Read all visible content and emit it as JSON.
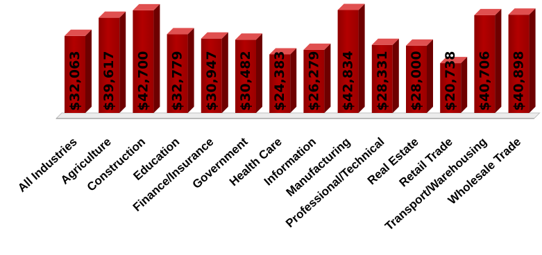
{
  "chart_data": {
    "type": "bar",
    "title": "",
    "xlabel": "",
    "ylabel": "",
    "categories": [
      "All Industries",
      "Agriculture",
      "Construction",
      "Education",
      "Finance/Insurance",
      "Government",
      "Health Care",
      "Information",
      "Manufacturing",
      "Professional/Technical",
      "Real Estate",
      "Retail Trade",
      "Transport/Warehousing",
      "Wholesale Trade"
    ],
    "values": [
      32063,
      39617,
      42700,
      32779,
      30947,
      30482,
      24383,
      26279,
      42834,
      28331,
      28000,
      20738,
      40706,
      40898
    ],
    "value_labels": [
      "$32,063",
      "$39,617",
      "$42,700",
      "$32,779",
      "$30,947",
      "$30,482",
      "$24,383",
      "$26,279",
      "$42,834",
      "$28,331",
      "$28,000",
      "$20,738",
      "$40,706",
      "$40,898"
    ],
    "ylim": [
      0,
      45000
    ],
    "grid": false,
    "legend": "none",
    "colors": {
      "bar_front": "#b00000",
      "bar_top": "#e05050",
      "bar_side": "#6e0000",
      "floor": "#d9d9d9"
    }
  }
}
